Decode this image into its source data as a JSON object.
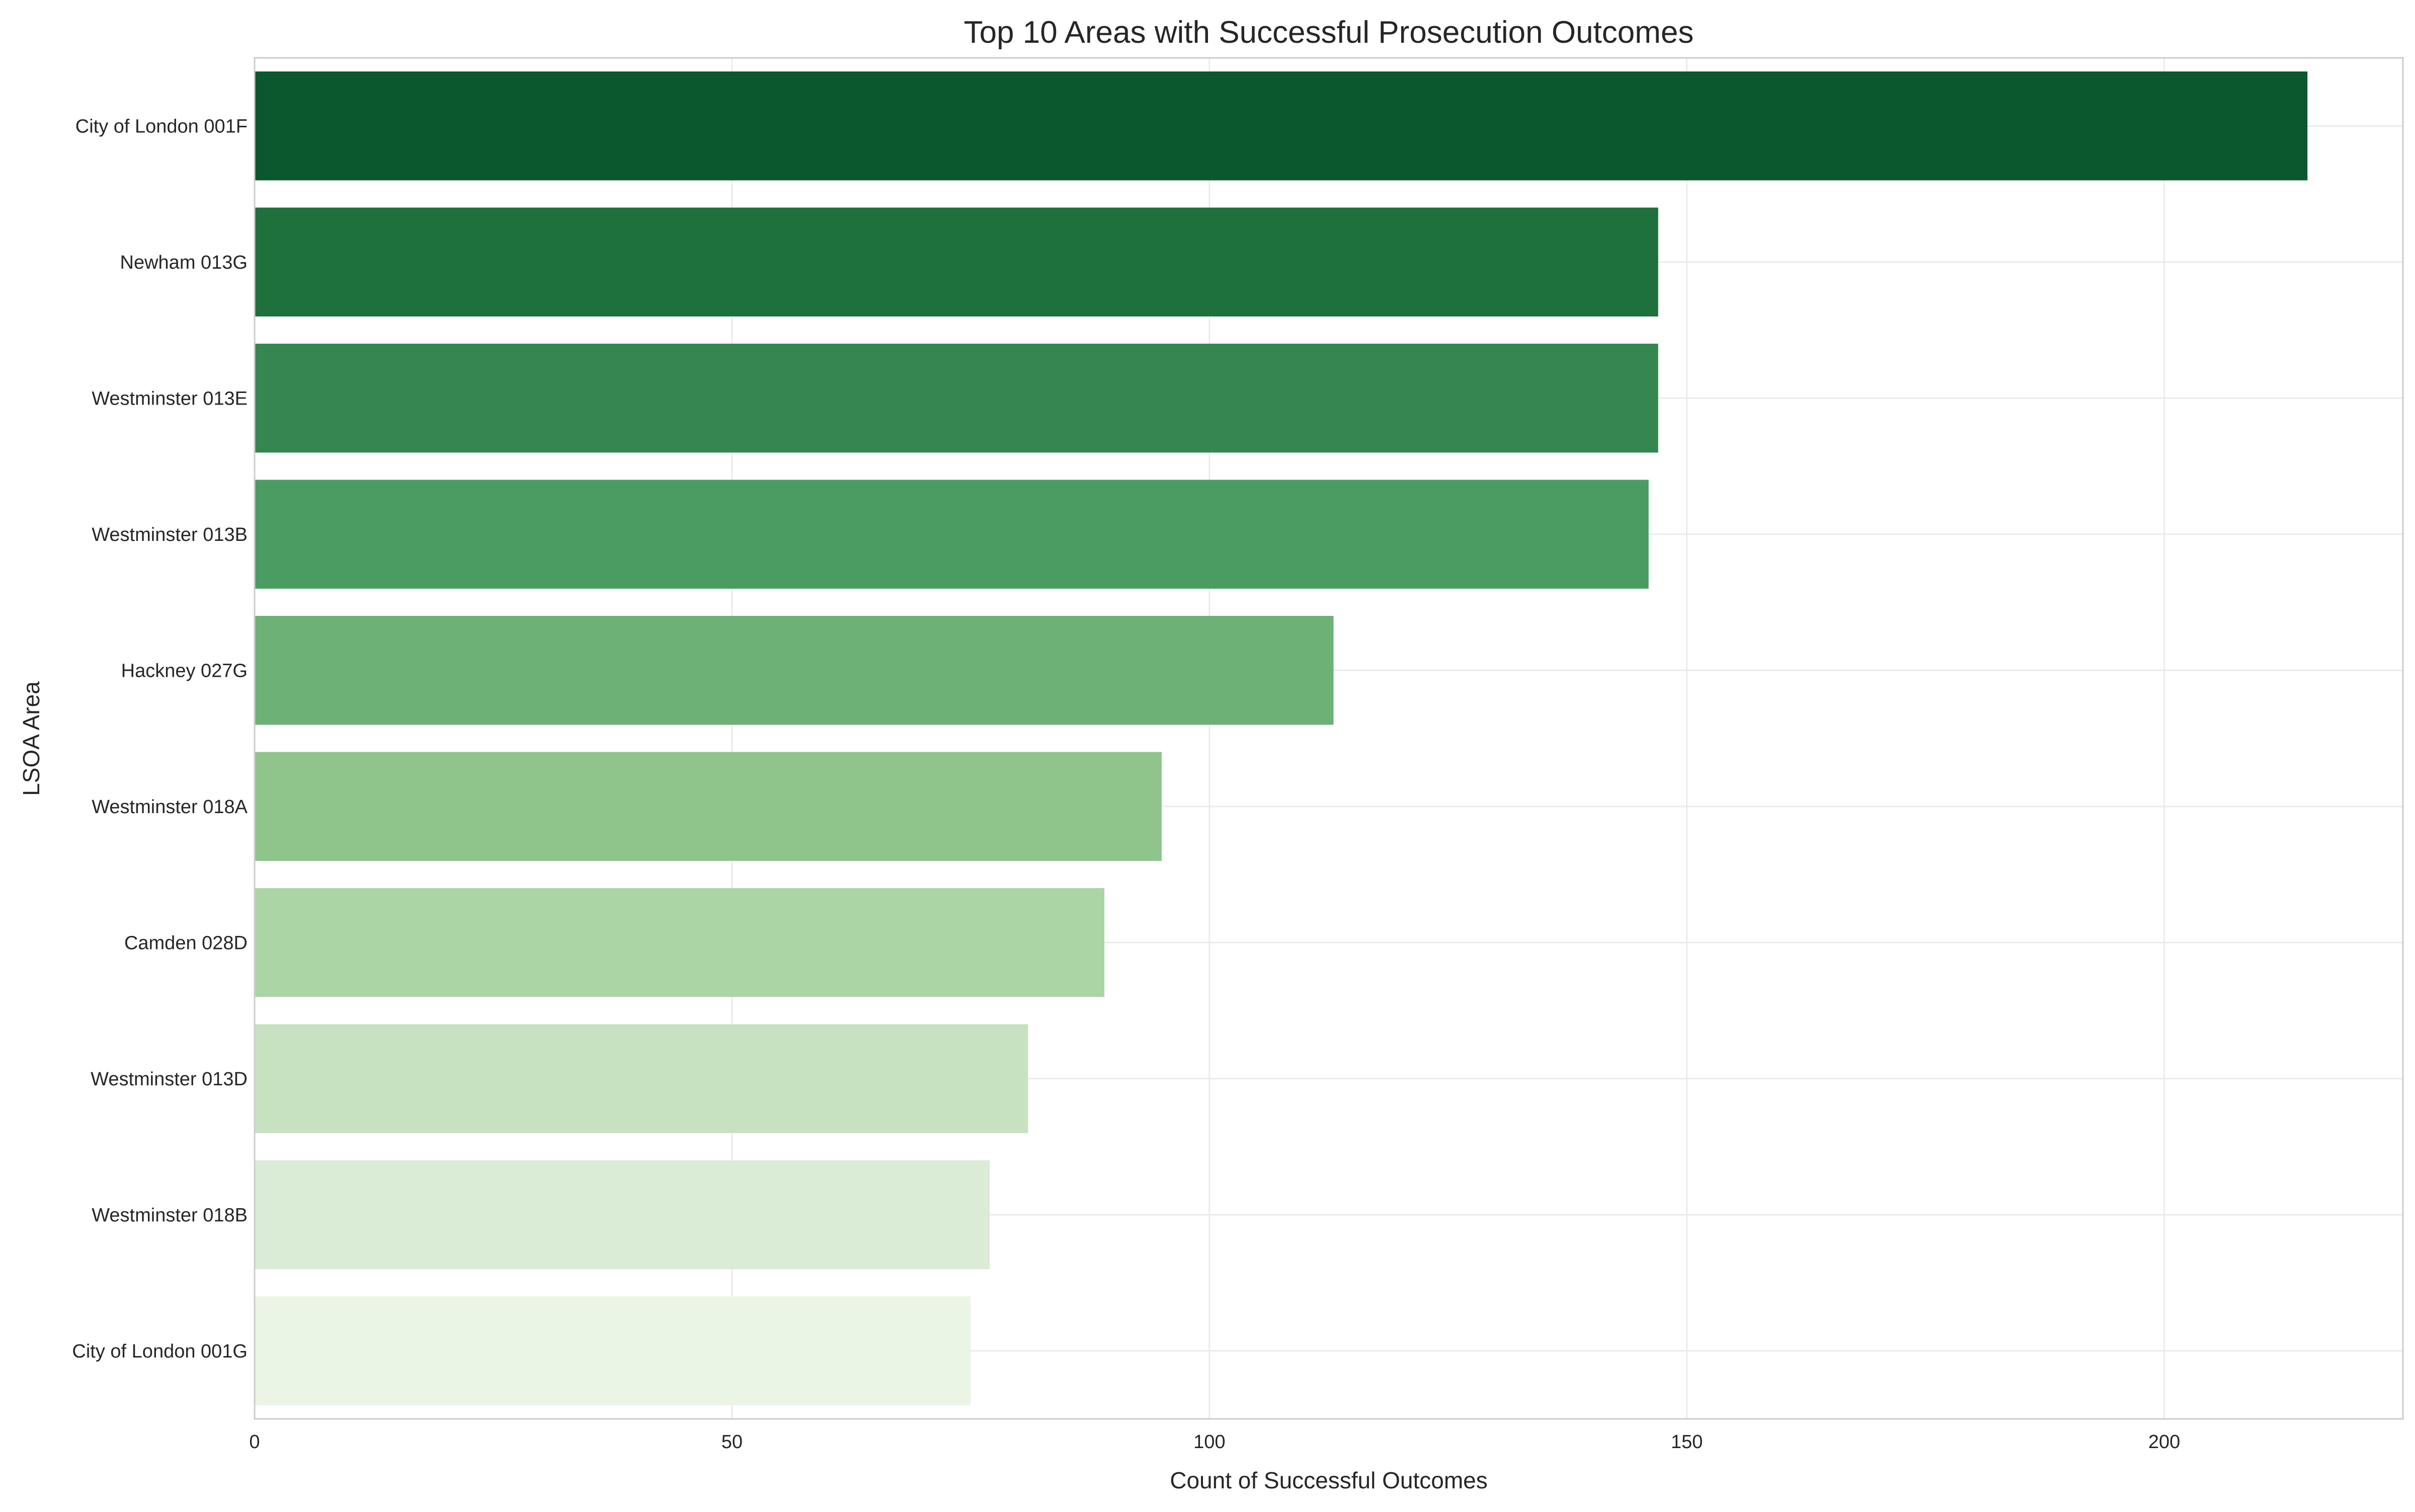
{
  "chart_data": {
    "type": "bar",
    "orientation": "horizontal",
    "title": "Top 10 Areas with Successful Prosecution Outcomes",
    "xlabel": "Count of Successful Outcomes",
    "ylabel": "LSOA Area",
    "xlim": [
      0,
      225
    ],
    "xticks": [
      0,
      50,
      100,
      150,
      200
    ],
    "grid": true,
    "categories": [
      "City of London 001F",
      "Newham 013G",
      "Westminster 013E",
      "Westminster 013B",
      "Hackney 027G",
      "Westminster 018A",
      "Camden 028D",
      "Westminster 013D",
      "Westminster 018B",
      "City of London 001G"
    ],
    "values": [
      215,
      147,
      147,
      146,
      113,
      95,
      89,
      81,
      77,
      75
    ],
    "colors": [
      "#0c582e",
      "#1e703c",
      "#358651",
      "#4b9c62",
      "#6db176",
      "#8fc48b",
      "#abd5a4",
      "#c7e2c0",
      "#dbecd6",
      "#eaf5e6"
    ],
    "colormap": "Greens"
  }
}
